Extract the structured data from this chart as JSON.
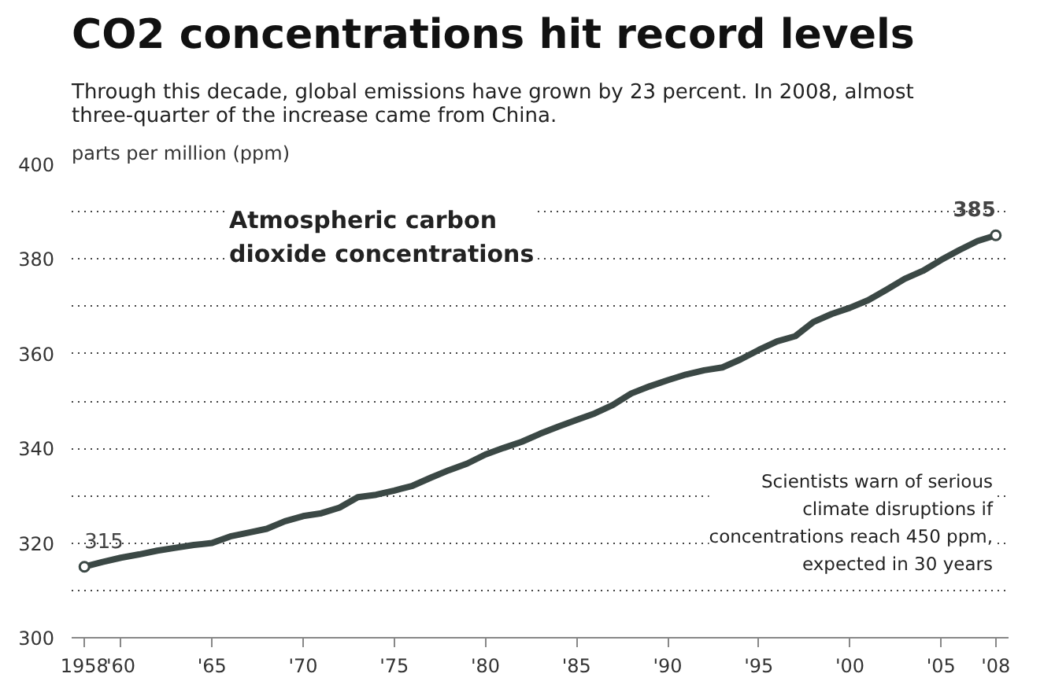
{
  "chart_data": {
    "type": "line",
    "title": "CO2 concentrations hit record levels",
    "subtitle": "Through this decade, global emissions have grown by 23 percent. In 2008, almost three-quarter of the increase came from China.",
    "ylabel": "parts per million (ppm)",
    "x": [
      1958,
      1959,
      1960,
      1961,
      1962,
      1963,
      1964,
      1965,
      1966,
      1967,
      1968,
      1969,
      1970,
      1971,
      1972,
      1973,
      1974,
      1975,
      1976,
      1977,
      1978,
      1979,
      1980,
      1981,
      1982,
      1983,
      1984,
      1985,
      1986,
      1987,
      1988,
      1989,
      1990,
      1991,
      1992,
      1993,
      1994,
      1995,
      1996,
      1997,
      1998,
      1999,
      2000,
      2001,
      2002,
      2003,
      2004,
      2005,
      2006,
      2007,
      2008
    ],
    "series": [
      {
        "color": "#3b4845",
        "values": [
          315,
          316,
          316.9,
          317.6,
          318.4,
          319,
          319.6,
          320,
          321.4,
          322.2,
          323,
          324.6,
          325.7,
          326.3,
          327.5,
          329.7,
          330.2,
          331.1,
          332.1,
          333.8,
          335.4,
          336.8,
          338.7,
          340.1,
          341.4,
          343.1,
          344.6,
          346,
          347.4,
          349.2,
          351.6,
          353.1,
          354.4,
          355.6,
          356.5,
          357.1,
          358.8,
          360.8,
          362.6,
          363.7,
          366.7,
          368.4,
          369.7,
          371.3,
          373.5,
          375.8,
          377.5,
          379.8,
          381.9,
          383.8,
          385
        ]
      }
    ],
    "xlim": [
      1957.3,
      2008.7
    ],
    "ylim": [
      300,
      400
    ],
    "xticks": [
      {
        "value": 1958,
        "label": "1958"
      },
      {
        "value": 1960,
        "label": "'60"
      },
      {
        "value": 1965,
        "label": "'65"
      },
      {
        "value": 1970,
        "label": "'70"
      },
      {
        "value": 1975,
        "label": "'75"
      },
      {
        "value": 1980,
        "label": "'80"
      },
      {
        "value": 1985,
        "label": "'85"
      },
      {
        "value": 1990,
        "label": "'90"
      },
      {
        "value": 1995,
        "label": "'95"
      },
      {
        "value": 2000,
        "label": "'00"
      },
      {
        "value": 2005,
        "label": "'05"
      },
      {
        "value": 2008,
        "label": "'08"
      }
    ],
    "yticks": [
      300,
      {
        "value": 310,
        "label": null
      },
      320,
      {
        "value": 330,
        "label": null
      },
      340,
      {
        "value": 350,
        "label": null
      },
      360,
      {
        "value": 370,
        "label": null
      },
      380,
      {
        "value": 390,
        "label": null
      },
      400
    ],
    "grid": "y",
    "marker": "none",
    "line_style": "solid",
    "annotations": [
      {
        "text": "315",
        "x": 1958,
        "y": 315
      },
      {
        "text": "385",
        "x": 2008,
        "y": 385
      },
      "Atmospheric carbon dioxide concentrations",
      "Scientists warn of serious climate disruptions if concentrations reach 450 ppm, expected in 30 years"
    ]
  }
}
